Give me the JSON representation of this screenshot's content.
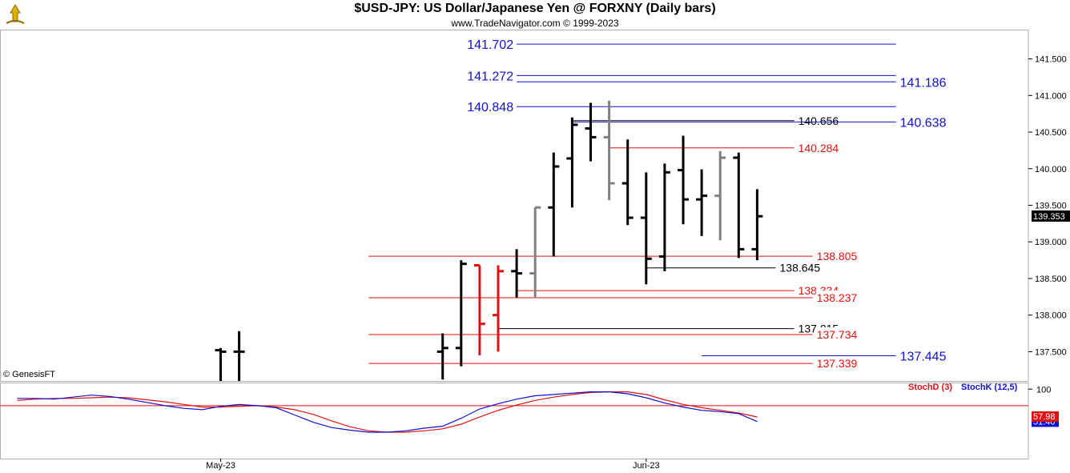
{
  "header": {
    "title": "$USD-JPY:  US Dollar/Japanese Yen @ FORXNY  (Daily bars)",
    "subtitle": "www.TradeNavigator.com © 1999-2023",
    "copyright": "© GenesisFT"
  },
  "colors": {
    "up": "#000000",
    "down_gray": "#808080",
    "red": "#e01010",
    "blue": "#1010d0",
    "black": "#000000"
  },
  "chart_data": [
    {
      "type": "ohlc",
      "title": "$USD-JPY:  US Dollar/Japanese Yen @ FORXNY  (Daily bars)",
      "ylim": [
        137.1,
        141.9
      ],
      "y_ticks": [
        "141.500",
        "141.000",
        "140.500",
        "140.000",
        "139.500",
        "139.000",
        "138.500",
        "138.000",
        "137.500"
      ],
      "last_price": "139.353",
      "x_labels": [
        {
          "label": "May-23",
          "date_index": 0
        },
        {
          "label": "Jun-23",
          "date_index": 23
        }
      ],
      "bars": [
        {
          "i": 0,
          "o": 137.52,
          "h": 137.55,
          "l": 137.1,
          "c": 137.5,
          "color": "black"
        },
        {
          "i": 1,
          "o": 137.5,
          "h": 137.78,
          "l": 137.1,
          "c": 137.5,
          "color": "black"
        },
        {
          "i": 12,
          "o": 137.5,
          "h": 137.75,
          "l": 137.12,
          "c": 137.55,
          "color": "black"
        },
        {
          "i": 13,
          "o": 137.55,
          "h": 138.75,
          "l": 137.3,
          "c": 138.7,
          "color": "black"
        },
        {
          "i": 14,
          "o": 138.68,
          "h": 138.68,
          "l": 137.45,
          "c": 137.88,
          "color": "red"
        },
        {
          "i": 15,
          "o": 138.0,
          "h": 138.68,
          "l": 137.5,
          "c": 138.6,
          "color": "red"
        },
        {
          "i": 16,
          "o": 138.6,
          "h": 138.9,
          "l": 138.24,
          "c": 138.57,
          "color": "black"
        },
        {
          "i": 17,
          "o": 138.57,
          "h": 139.47,
          "l": 138.23,
          "c": 139.47,
          "color": "gray"
        },
        {
          "i": 18,
          "o": 139.47,
          "h": 140.22,
          "l": 138.8,
          "c": 140.03,
          "color": "black"
        },
        {
          "i": 19,
          "o": 140.14,
          "h": 140.7,
          "l": 139.47,
          "c": 140.6,
          "color": "black"
        },
        {
          "i": 20,
          "o": 140.55,
          "h": 140.9,
          "l": 140.1,
          "c": 140.43,
          "color": "black"
        },
        {
          "i": 21,
          "o": 140.43,
          "h": 140.93,
          "l": 139.57,
          "c": 139.8,
          "color": "gray"
        },
        {
          "i": 22,
          "o": 139.8,
          "h": 140.4,
          "l": 139.23,
          "c": 139.33,
          "color": "black"
        },
        {
          "i": 23,
          "o": 139.33,
          "h": 139.95,
          "l": 138.42,
          "c": 138.77,
          "color": "black"
        },
        {
          "i": 24,
          "o": 138.8,
          "h": 140.07,
          "l": 138.6,
          "c": 139.95,
          "color": "black"
        },
        {
          "i": 25,
          "o": 139.98,
          "h": 140.45,
          "l": 139.24,
          "c": 139.58,
          "color": "black"
        },
        {
          "i": 26,
          "o": 139.58,
          "h": 139.99,
          "l": 139.08,
          "c": 139.63,
          "color": "black"
        },
        {
          "i": 27,
          "o": 139.63,
          "h": 140.24,
          "l": 139.02,
          "c": 140.15,
          "color": "gray"
        },
        {
          "i": 28,
          "o": 140.15,
          "h": 140.22,
          "l": 138.78,
          "c": 138.9,
          "color": "black"
        },
        {
          "i": 29,
          "o": 138.9,
          "h": 139.72,
          "l": 138.75,
          "c": 139.35,
          "color": "black"
        }
      ],
      "levels": [
        {
          "value": 141.702,
          "label": "141.702",
          "color": "blue",
          "side": "left",
          "from": 16,
          "to": 36.5
        },
        {
          "value": 141.272,
          "label": "141.272",
          "color": "blue",
          "side": "left",
          "from": 16,
          "to": 36.5
        },
        {
          "value": 141.186,
          "label": "141.186",
          "color": "blue",
          "side": "right",
          "from": 16,
          "to": 36.5
        },
        {
          "value": 140.848,
          "label": "140.848",
          "color": "blue",
          "side": "left",
          "from": 16,
          "to": 36.5
        },
        {
          "value": 140.656,
          "label": "140.656",
          "color": "black",
          "side": "right",
          "from": 19,
          "to": 31
        },
        {
          "value": 140.638,
          "label": "140.638",
          "color": "blue",
          "side": "right",
          "from": 19,
          "to": 36.5
        },
        {
          "value": 140.284,
          "label": "140.284",
          "color": "red",
          "side": "right",
          "from": 21,
          "to": 31
        },
        {
          "value": 138.805,
          "label": "138.805",
          "color": "red",
          "side": "right",
          "from": 8,
          "to": 32
        },
        {
          "value": 138.645,
          "label": "138.645",
          "color": "black",
          "side": "right",
          "from": 23,
          "to": 30
        },
        {
          "value": 138.334,
          "label": "138.334",
          "color": "red",
          "side": "right",
          "from": 16,
          "to": 31
        },
        {
          "value": 138.237,
          "label": "138.237",
          "color": "red",
          "side": "right",
          "from": 8,
          "to": 32
        },
        {
          "value": 137.815,
          "label": "137.815",
          "color": "black",
          "side": "right",
          "from": 15,
          "to": 31
        },
        {
          "value": 137.734,
          "label": "137.734",
          "color": "red",
          "side": "right",
          "from": 8,
          "to": 32
        },
        {
          "value": 137.445,
          "label": "137.445",
          "color": "blue",
          "side": "right",
          "from": 26,
          "to": 36.5
        },
        {
          "value": 137.339,
          "label": "137.339",
          "color": "red",
          "side": "right",
          "from": 8,
          "to": 32
        }
      ]
    },
    {
      "type": "line",
      "title": "Stochastic",
      "ylim": [
        -5,
        110
      ],
      "y_ticks": [
        "100"
      ],
      "reference_line": 75,
      "legend": [
        "StochD (3)",
        "StochK (12,5)"
      ],
      "last_values": {
        "stochd": "57.98",
        "stochk": "51.40"
      },
      "series": [
        {
          "name": "StochD (3)",
          "color": "red",
          "x": [
            -11,
            -10,
            -9,
            -8,
            -7,
            -6,
            -5,
            -4,
            -3,
            -2,
            -1,
            0,
            1,
            2,
            3,
            4,
            5,
            6,
            7,
            8,
            9,
            10,
            11,
            12,
            13,
            14,
            15,
            16,
            17,
            18,
            19,
            20,
            21,
            22,
            23,
            24,
            25,
            26,
            27,
            28,
            29
          ],
          "values": [
            83,
            85,
            86,
            86,
            87,
            88,
            87,
            84,
            81,
            77,
            73,
            73,
            74,
            75,
            73,
            69,
            62,
            52,
            43,
            37,
            35,
            35,
            37,
            40,
            47,
            58,
            68,
            76,
            83,
            88,
            92,
            95,
            96,
            96,
            92,
            84,
            77,
            72,
            68,
            64,
            58
          ]
        },
        {
          "name": "StochK (12,5)",
          "color": "blue",
          "x": [
            -11,
            -10,
            -9,
            -8,
            -7,
            -6,
            -5,
            -4,
            -3,
            -2,
            -1,
            0,
            1,
            2,
            3,
            4,
            5,
            6,
            7,
            8,
            9,
            10,
            11,
            12,
            13,
            14,
            15,
            16,
            17,
            18,
            19,
            20,
            21,
            22,
            23,
            24,
            25,
            26,
            27,
            28,
            29
          ],
          "values": [
            86,
            86,
            85,
            88,
            91,
            89,
            85,
            80,
            75,
            71,
            69,
            74,
            77,
            75,
            72,
            61,
            50,
            42,
            38,
            35,
            35,
            37,
            41,
            44,
            56,
            70,
            78,
            85,
            90,
            92,
            94,
            96,
            96,
            93,
            87,
            79,
            73,
            68,
            66,
            63,
            51
          ]
        }
      ]
    }
  ]
}
